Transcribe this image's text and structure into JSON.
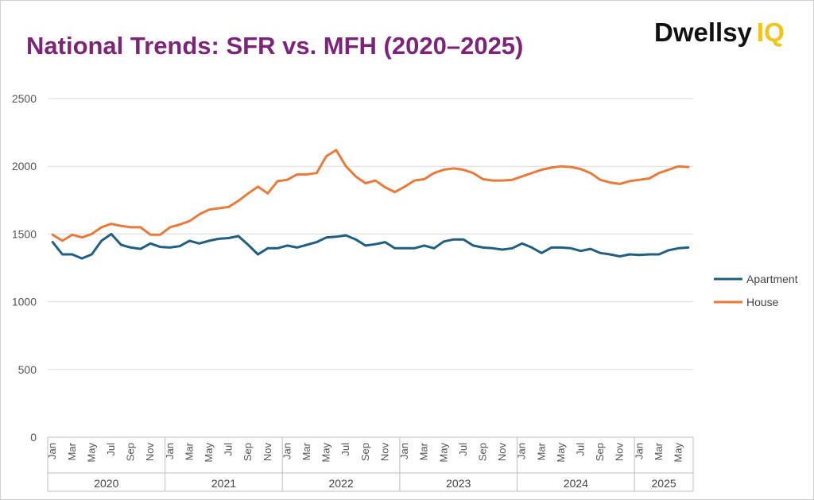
{
  "title": "National Trends: SFR vs. MFH (2020–2025)",
  "logo": {
    "brand": "Dwellsy",
    "suffix": "IQ"
  },
  "colors": {
    "title": "#7b2479",
    "apartment": "#1f5f7f",
    "house": "#e97a3a",
    "grid": "#d9d9d9",
    "logo_accent": "#f2c318"
  },
  "chart_data": {
    "type": "line",
    "title": "National Trends: SFR vs. MFH (2020–2025)",
    "xlabel": "",
    "ylabel": "",
    "ylim": [
      0,
      2500
    ],
    "yticks": [
      "0",
      "500",
      "1000",
      "1500",
      "2000",
      "2500"
    ],
    "grid": true,
    "legend_position": "right",
    "years": [
      {
        "label": "2020",
        "month_count": 12
      },
      {
        "label": "2021",
        "month_count": 12
      },
      {
        "label": "2022",
        "month_count": 12
      },
      {
        "label": "2023",
        "month_count": 12
      },
      {
        "label": "2024",
        "month_count": 12
      },
      {
        "label": "2025",
        "month_count": 6
      }
    ],
    "month_labels": [
      "Jan",
      "Mar",
      "May",
      "Jul",
      "Sep",
      "Nov"
    ],
    "series": [
      {
        "name": "Apartment",
        "values": [
          1440,
          1350,
          1350,
          1320,
          1350,
          1450,
          1500,
          1420,
          1400,
          1390,
          1430,
          1405,
          1400,
          1410,
          1450,
          1430,
          1450,
          1465,
          1470,
          1485,
          1420,
          1350,
          1395,
          1395,
          1415,
          1400,
          1420,
          1440,
          1475,
          1480,
          1490,
          1460,
          1415,
          1425,
          1440,
          1395,
          1395,
          1395,
          1415,
          1395,
          1445,
          1460,
          1460,
          1415,
          1400,
          1395,
          1385,
          1395,
          1430,
          1400,
          1360,
          1400,
          1400,
          1395,
          1375,
          1390,
          1360,
          1350,
          1335,
          1350,
          1345,
          1350,
          1350,
          1380,
          1395,
          1400
        ]
      },
      {
        "name": "House",
        "values": [
          1495,
          1450,
          1495,
          1475,
          1500,
          1550,
          1575,
          1560,
          1550,
          1550,
          1495,
          1495,
          1550,
          1570,
          1595,
          1645,
          1680,
          1690,
          1700,
          1745,
          1800,
          1850,
          1800,
          1890,
          1900,
          1940,
          1940,
          1950,
          2075,
          2120,
          2000,
          1925,
          1875,
          1895,
          1845,
          1810,
          1850,
          1895,
          1905,
          1950,
          1975,
          1985,
          1975,
          1950,
          1905,
          1895,
          1895,
          1900,
          1925,
          1950,
          1975,
          1990,
          2000,
          1995,
          1980,
          1950,
          1900,
          1880,
          1870,
          1890,
          1900,
          1910,
          1950,
          1975,
          2000,
          1995
        ]
      }
    ]
  }
}
